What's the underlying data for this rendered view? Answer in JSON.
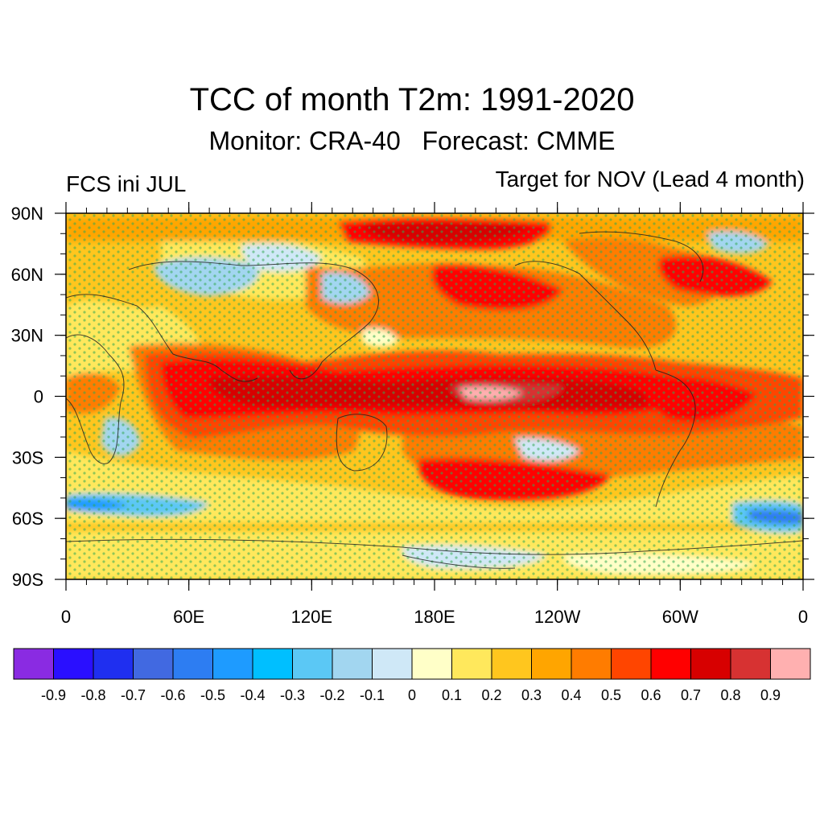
{
  "title": "TCC of month T2m: 1991-2020",
  "subtitle": "Monitor: CRA-40   Forecast: CMME",
  "left_label": "FCS ini JUL",
  "right_label": "Target for NOV (Lead 4 month)",
  "lat_ticks": [
    "90N",
    "60N",
    "30N",
    "0",
    "30S",
    "60S",
    "90S"
  ],
  "lon_ticks": [
    "0",
    "60E",
    "120E",
    "180E",
    "120W",
    "60W",
    "0"
  ],
  "colorbar": {
    "colors": [
      "#8a2be2",
      "#2a0fff",
      "#1f2ff0",
      "#4169e1",
      "#2d7df2",
      "#1e9bff",
      "#00bfff",
      "#5bc8f5",
      "#a2d6f0",
      "#cfe8f7",
      "#ffffc8",
      "#ffe85c",
      "#ffc61e",
      "#ffa500",
      "#ff7c00",
      "#ff4500",
      "#ff0000",
      "#d70000",
      "#d73232",
      "#ffb0b0"
    ],
    "labels": [
      "-0.9",
      "-0.8",
      "-0.7",
      "-0.6",
      "-0.5",
      "-0.4",
      "-0.3",
      "-0.2",
      "-0.1",
      "0",
      "0.1",
      "0.2",
      "0.3",
      "0.4",
      "0.5",
      "0.6",
      "0.7",
      "0.8",
      "0.9"
    ]
  }
}
